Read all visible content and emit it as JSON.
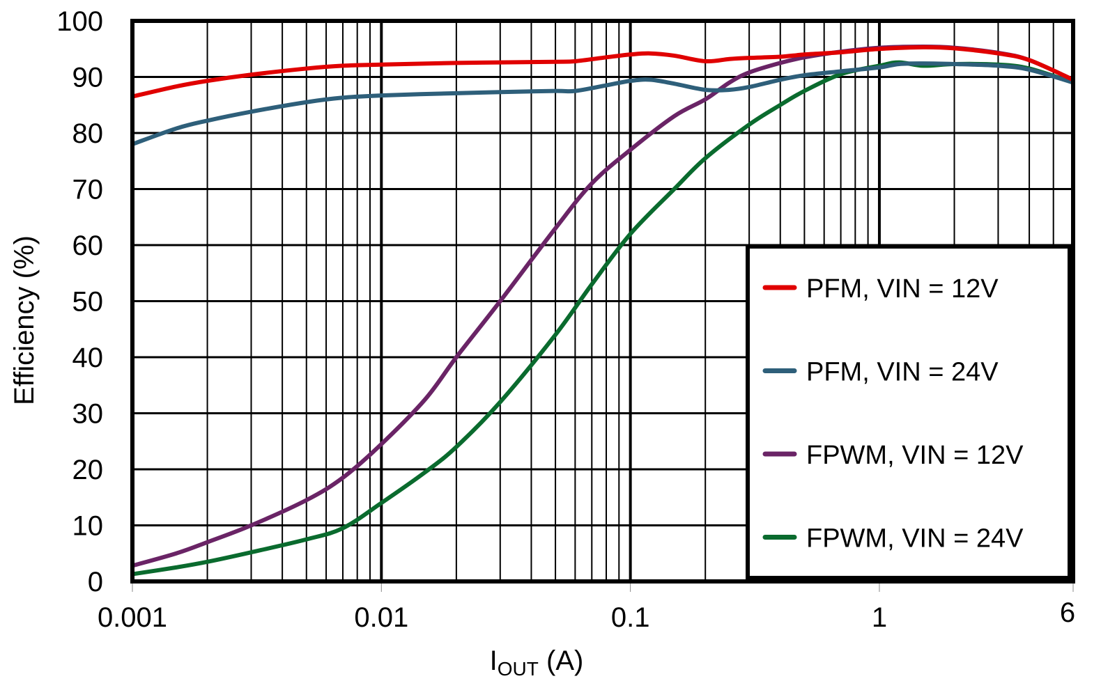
{
  "chart_data": {
    "type": "line",
    "title": "",
    "xlabel": "IOUT (A)",
    "xlabel_main": "I",
    "xlabel_sub": "OUT",
    "xlabel_unit": " (A)",
    "ylabel": "Efficiency (%)",
    "xscale": "log",
    "xlim": [
      0.001,
      6
    ],
    "ylim": [
      0,
      100
    ],
    "grid": true,
    "legend_position": "lower right inside",
    "x_ticks": [
      "0.001",
      "0.01",
      "0.1",
      "1",
      "6"
    ],
    "y_ticks": [
      "0",
      "10",
      "20",
      "30",
      "40",
      "50",
      "60",
      "70",
      "80",
      "90",
      "100"
    ],
    "series": [
      {
        "name": "PFM, VIN = 12V",
        "color": "#e00000",
        "x": [
          0.001,
          0.0015,
          0.002,
          0.003,
          0.005,
          0.007,
          0.01,
          0.02,
          0.03,
          0.05,
          0.06,
          0.08,
          0.1,
          0.12,
          0.15,
          0.2,
          0.25,
          0.3,
          0.4,
          0.5,
          0.7,
          1,
          1.5,
          2,
          3,
          4,
          6
        ],
        "values": [
          86.5,
          88.3,
          89.3,
          90.4,
          91.5,
          92.0,
          92.2,
          92.5,
          92.6,
          92.7,
          92.8,
          93.5,
          94.0,
          94.2,
          93.8,
          92.8,
          93.2,
          93.4,
          93.6,
          94.0,
          94.4,
          95.0,
          95.3,
          95.1,
          94.2,
          93.0,
          89.5
        ]
      },
      {
        "name": "PFM, VIN = 24V",
        "color": "#2e5f7a",
        "x": [
          0.001,
          0.0015,
          0.002,
          0.003,
          0.005,
          0.007,
          0.01,
          0.02,
          0.03,
          0.05,
          0.06,
          0.08,
          0.1,
          0.12,
          0.15,
          0.2,
          0.25,
          0.3,
          0.4,
          0.5,
          0.7,
          1,
          1.2,
          1.5,
          2,
          3,
          4,
          6
        ],
        "values": [
          78.0,
          80.8,
          82.2,
          83.8,
          85.5,
          86.3,
          86.7,
          87.1,
          87.3,
          87.5,
          87.5,
          88.5,
          89.3,
          89.5,
          88.8,
          87.7,
          87.7,
          88.2,
          89.5,
          90.3,
          91.0,
          91.7,
          92.3,
          92.4,
          92.3,
          92.0,
          91.3,
          89.0
        ]
      },
      {
        "name": "FPWM, VIN = 12V",
        "color": "#6a2466",
        "x": [
          0.001,
          0.0015,
          0.002,
          0.003,
          0.005,
          0.007,
          0.01,
          0.015,
          0.02,
          0.03,
          0.05,
          0.07,
          0.1,
          0.15,
          0.2,
          0.25,
          0.3,
          0.4,
          0.5,
          0.7,
          1,
          1.5,
          2,
          3,
          4,
          6
        ],
        "values": [
          2.8,
          5.0,
          7.0,
          10.0,
          14.5,
          18.5,
          24.5,
          32.5,
          40.0,
          50.0,
          63.0,
          71.0,
          77.0,
          83.0,
          86.0,
          89.0,
          90.8,
          92.5,
          93.5,
          94.5,
          95.2,
          95.4,
          95.2,
          94.3,
          93.0,
          89.5
        ]
      },
      {
        "name": "FPWM, VIN = 24V",
        "color": "#0a6b2e",
        "x": [
          0.001,
          0.0015,
          0.002,
          0.003,
          0.005,
          0.007,
          0.01,
          0.015,
          0.02,
          0.03,
          0.05,
          0.07,
          0.1,
          0.15,
          0.2,
          0.3,
          0.4,
          0.5,
          0.7,
          1,
          1.2,
          1.5,
          2,
          3,
          4,
          6
        ],
        "values": [
          1.3,
          2.5,
          3.5,
          5.2,
          7.5,
          9.5,
          14.0,
          19.5,
          24.0,
          32.0,
          44.0,
          53.0,
          62.0,
          70.0,
          75.5,
          81.5,
          85.0,
          87.5,
          90.5,
          92.0,
          92.6,
          92.0,
          92.3,
          92.2,
          91.5,
          89.0
        ]
      }
    ]
  }
}
